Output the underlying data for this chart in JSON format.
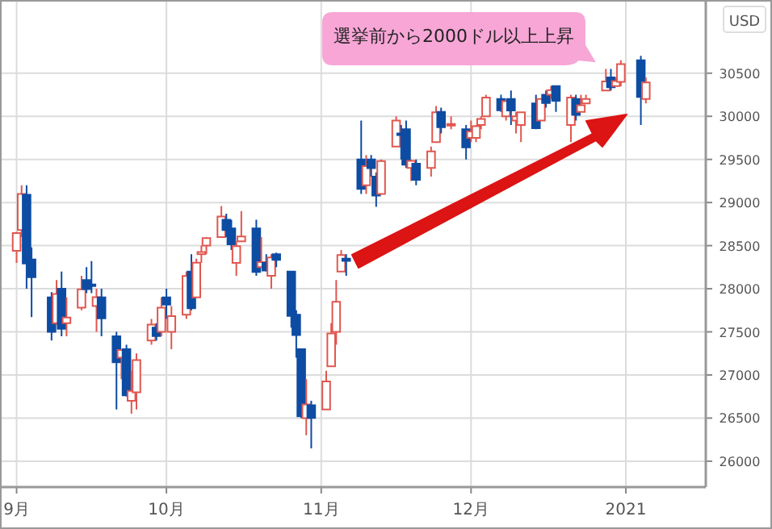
{
  "chart_data": {
    "type": "candlestick",
    "ylabel": "USD",
    "annotations": [
      "選挙前から2000ドル以上上昇"
    ],
    "grid": true,
    "xlim": [
      "2020-08-29",
      "2021-01-17"
    ],
    "ylim": [
      25700,
      31330
    ],
    "xticks": [
      {
        "value": "2020-09-01",
        "label": "9月"
      },
      {
        "value": "2020-10-01",
        "label": "10月"
      },
      {
        "value": "2020-11-01",
        "label": "11月"
      },
      {
        "value": "2020-12-01",
        "label": "12月"
      },
      {
        "value": "2021-01-01",
        "label": "2021"
      }
    ],
    "yticks": [
      26000,
      26500,
      27000,
      27500,
      28000,
      28500,
      29000,
      29500,
      30000,
      30500
    ],
    "x": [
      "2020-09-01",
      "2020-09-02",
      "2020-09-03",
      "2020-09-04",
      "2020-09-08",
      "2020-09-09",
      "2020-09-10",
      "2020-09-11",
      "2020-09-14",
      "2020-09-15",
      "2020-09-16",
      "2020-09-17",
      "2020-09-18",
      "2020-09-21",
      "2020-09-22",
      "2020-09-23",
      "2020-09-24",
      "2020-09-25",
      "2020-09-28",
      "2020-09-29",
      "2020-09-30",
      "2020-10-01",
      "2020-10-02",
      "2020-10-05",
      "2020-10-06",
      "2020-10-07",
      "2020-10-08",
      "2020-10-09",
      "2020-10-12",
      "2020-10-13",
      "2020-10-14",
      "2020-10-15",
      "2020-10-16",
      "2020-10-19",
      "2020-10-20",
      "2020-10-21",
      "2020-10-22",
      "2020-10-23",
      "2020-10-26",
      "2020-10-27",
      "2020-10-28",
      "2020-10-29",
      "2020-10-30",
      "2020-11-02",
      "2020-11-03",
      "2020-11-04",
      "2020-11-05",
      "2020-11-06",
      "2020-11-09",
      "2020-11-10",
      "2020-11-11",
      "2020-11-12",
      "2020-11-13",
      "2020-11-16",
      "2020-11-17",
      "2020-11-18",
      "2020-11-19",
      "2020-11-20",
      "2020-11-23",
      "2020-11-24",
      "2020-11-25",
      "2020-11-27",
      "2020-11-30",
      "2020-12-01",
      "2020-12-02",
      "2020-12-03",
      "2020-12-04",
      "2020-12-07",
      "2020-12-08",
      "2020-12-09",
      "2020-12-10",
      "2020-12-11",
      "2020-12-14",
      "2020-12-15",
      "2020-12-16",
      "2020-12-17",
      "2020-12-18",
      "2020-12-21",
      "2020-12-22",
      "2020-12-23",
      "2020-12-24",
      "2020-12-28",
      "2020-12-29",
      "2020-12-30",
      "2020-12-31",
      "2021-01-04",
      "2021-01-05"
    ],
    "ohlc": [
      [
        28440,
        28660,
        28300,
        28645
      ],
      [
        28680,
        29200,
        28600,
        29100
      ],
      [
        29090,
        29200,
        28000,
        28292
      ],
      [
        28340,
        28480,
        27670,
        28133
      ],
      [
        27900,
        27960,
        27400,
        27501
      ],
      [
        27600,
        28100,
        27580,
        27940
      ],
      [
        28000,
        28200,
        27450,
        27535
      ],
      [
        27600,
        27900,
        27450,
        27666
      ],
      [
        27780,
        28150,
        27750,
        27993
      ],
      [
        28100,
        28250,
        27950,
        27996
      ],
      [
        28050,
        28320,
        27950,
        28032
      ],
      [
        27800,
        28000,
        27500,
        27902
      ],
      [
        27900,
        28000,
        27450,
        27657
      ],
      [
        27450,
        27500,
        26600,
        27148
      ],
      [
        27200,
        27300,
        26950,
        27289
      ],
      [
        27300,
        27350,
        26750,
        26763
      ],
      [
        26700,
        27050,
        26550,
        26815
      ],
      [
        26800,
        27250,
        26600,
        27174
      ],
      [
        27400,
        27650,
        27350,
        27584
      ],
      [
        27550,
        27600,
        27400,
        27452
      ],
      [
        27500,
        27900,
        27450,
        27782
      ],
      [
        27900,
        28000,
        27650,
        27817
      ],
      [
        27500,
        27800,
        27300,
        27683
      ],
      [
        27700,
        28200,
        27650,
        28149
      ],
      [
        28200,
        28400,
        27750,
        27773
      ],
      [
        27900,
        28350,
        27900,
        28303
      ],
      [
        28400,
        28500,
        28300,
        28426
      ],
      [
        28500,
        28600,
        28400,
        28587
      ],
      [
        28600,
        28960,
        28600,
        28838
      ],
      [
        28800,
        28870,
        28600,
        28680
      ],
      [
        28700,
        28800,
        28450,
        28514
      ],
      [
        28300,
        28550,
        28150,
        28495
      ],
      [
        28550,
        28900,
        28550,
        28606
      ],
      [
        28700,
        28800,
        28150,
        28195
      ],
      [
        28250,
        28600,
        28250,
        28309
      ],
      [
        28300,
        28400,
        28200,
        28211
      ],
      [
        28150,
        28400,
        28000,
        28364
      ],
      [
        28400,
        28420,
        28250,
        28336
      ],
      [
        28200,
        28200,
        27550,
        27685
      ],
      [
        27700,
        27750,
        27200,
        27463
      ],
      [
        27300,
        27300,
        26500,
        26520
      ],
      [
        26500,
        26950,
        26300,
        26659
      ],
      [
        26650,
        26700,
        26150,
        26502
      ],
      [
        26600,
        27050,
        26600,
        26925
      ],
      [
        27100,
        27600,
        27100,
        27481
      ],
      [
        27500,
        28100,
        27350,
        27848
      ],
      [
        28200,
        28450,
        28200,
        28390
      ],
      [
        28350,
        28400,
        28150,
        28323
      ],
      [
        29500,
        29950,
        29100,
        29158
      ],
      [
        29200,
        29550,
        29100,
        29421
      ],
      [
        29500,
        29550,
        29300,
        29398
      ],
      [
        29300,
        29350,
        28950,
        29080
      ],
      [
        29100,
        29500,
        29100,
        29480
      ],
      [
        29650,
        30000,
        29650,
        29950
      ],
      [
        29800,
        29900,
        29500,
        29784
      ],
      [
        29850,
        29950,
        29400,
        29438
      ],
      [
        29400,
        29500,
        29250,
        29483
      ],
      [
        29450,
        29500,
        29200,
        29263
      ],
      [
        29400,
        29650,
        29300,
        29592
      ],
      [
        29700,
        30120,
        29700,
        30046
      ],
      [
        30050,
        30100,
        29800,
        29873
      ],
      [
        29900,
        30000,
        29850,
        29910
      ],
      [
        29850,
        29900,
        29500,
        29639
      ],
      [
        29750,
        29950,
        29700,
        29824
      ],
      [
        29750,
        29900,
        29700,
        29884
      ],
      [
        29900,
        30000,
        29850,
        29970
      ],
      [
        30000,
        30250,
        30000,
        30218
      ],
      [
        30200,
        30250,
        30050,
        30070
      ],
      [
        30000,
        30200,
        29950,
        30174
      ],
      [
        30200,
        30300,
        29900,
        30068
      ],
      [
        29950,
        30050,
        29800,
        29999
      ],
      [
        29900,
        30050,
        29700,
        30046
      ],
      [
        30150,
        30250,
        29850,
        29862
      ],
      [
        29950,
        30200,
        29950,
        30200
      ],
      [
        30250,
        30300,
        30100,
        30155
      ],
      [
        30250,
        30350,
        30200,
        30304
      ],
      [
        30350,
        30350,
        30050,
        30179
      ],
      [
        29900,
        30250,
        29700,
        30216
      ],
      [
        30200,
        30250,
        29950,
        30015
      ],
      [
        30050,
        30250,
        30050,
        30129
      ],
      [
        30150,
        30250,
        30150,
        30200
      ],
      [
        30300,
        30550,
        30300,
        30404
      ],
      [
        30450,
        30550,
        30300,
        30336
      ],
      [
        30350,
        30450,
        30350,
        30409
      ],
      [
        30400,
        30650,
        30350,
        30606
      ],
      [
        30650,
        30700,
        29900,
        30223
      ],
      [
        30200,
        30450,
        30150,
        30392
      ]
    ]
  }
}
